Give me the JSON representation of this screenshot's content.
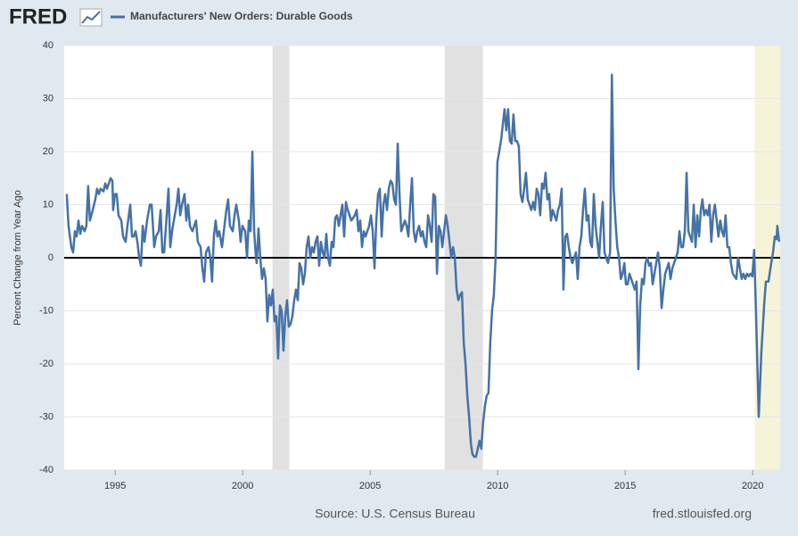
{
  "chart_data": {
    "type": "line",
    "brand": "FRED",
    "y_label": "Percent Change from Year Ago",
    "source": "Source: U.S. Census Bureau",
    "site": "fred.stlouisfed.org",
    "xlim": [
      1993,
      2021.08
    ],
    "xticks": [
      1995,
      2000,
      2005,
      2010,
      2015,
      2020
    ],
    "ylim": [
      -40,
      40
    ],
    "yticks": [
      -40,
      -30,
      -20,
      -10,
      0,
      10,
      20,
      30,
      40
    ],
    "grid": true,
    "zero_line": true,
    "shaded_regions": [
      {
        "x": [
          2001.17,
          2001.83
        ],
        "color": "#e1e1e1"
      },
      {
        "x": [
          2007.92,
          2009.42
        ],
        "color": "#e1e1e1"
      },
      {
        "x": [
          2020.08,
          2021.08
        ],
        "color": "#f6f4d8"
      }
    ],
    "x": [
      1993.1,
      1993.17,
      1993.28,
      1993.35,
      1993.42,
      1993.49,
      1993.56,
      1993.63,
      1993.7,
      1993.8,
      1993.87,
      1993.94,
      1994.01,
      1994.12,
      1994.22,
      1994.29,
      1994.36,
      1994.43,
      1994.54,
      1994.61,
      1994.68,
      1994.75,
      1994.82,
      1994.89,
      1994.92,
      1994.99,
      1995.06,
      1995.13,
      1995.24,
      1995.31,
      1995.41,
      1995.48,
      1995.59,
      1995.66,
      1995.73,
      1995.8,
      1995.87,
      1995.94,
      1996.01,
      1996.08,
      1996.15,
      1996.25,
      1996.36,
      1996.43,
      1996.53,
      1996.6,
      1996.71,
      1996.78,
      1996.85,
      1996.92,
      1997.02,
      1997.09,
      1997.16,
      1997.23,
      1997.3,
      1997.41,
      1997.48,
      1997.55,
      1997.62,
      1997.72,
      1997.79,
      1997.86,
      1997.93,
      1998.03,
      1998.1,
      1998.17,
      1998.24,
      1998.35,
      1998.42,
      1998.49,
      1998.56,
      1998.66,
      1998.73,
      1998.8,
      1998.87,
      1998.94,
      1999.01,
      1999.08,
      1999.19,
      1999.26,
      1999.36,
      1999.43,
      1999.5,
      1999.61,
      1999.68,
      1999.75,
      1999.85,
      1999.92,
      1999.99,
      2000.1,
      2000.17,
      2000.24,
      2000.31,
      2000.38,
      2000.45,
      2000.52,
      2000.55,
      2000.62,
      2000.69,
      2000.76,
      2000.83,
      2000.9,
      2000.97,
      2001.04,
      2001.11,
      2001.18,
      2001.25,
      2001.32,
      2001.39,
      2001.46,
      2001.53,
      2001.6,
      2001.67,
      2001.74,
      2001.81,
      2001.88,
      2001.95,
      2002.02,
      2002.09,
      2002.16,
      2002.23,
      2002.3,
      2002.37,
      2002.44,
      2002.51,
      2002.58,
      2002.65,
      2002.72,
      2002.79,
      2002.86,
      2002.93,
      2003.0,
      2003.07,
      2003.14,
      2003.21,
      2003.28,
      2003.35,
      2003.42,
      2003.49,
      2003.56,
      2003.63,
      2003.7,
      2003.77,
      2003.84,
      2003.91,
      2003.98,
      2004.05,
      2004.12,
      2004.19,
      2004.26,
      2004.33,
      2004.4,
      2004.47,
      2004.54,
      2004.61,
      2004.68,
      2004.75,
      2004.82,
      2004.89,
      2004.96,
      2005.03,
      2005.1,
      2005.17,
      2005.24,
      2005.31,
      2005.38,
      2005.45,
      2005.52,
      2005.59,
      2005.66,
      2005.73,
      2005.8,
      2005.87,
      2005.94,
      2006.01,
      2006.08,
      2006.15,
      2006.22,
      2006.29,
      2006.36,
      2006.43,
      2006.5,
      2006.57,
      2006.64,
      2006.71,
      2006.78,
      2006.85,
      2006.92,
      2006.99,
      2007.06,
      2007.13,
      2007.2,
      2007.27,
      2007.34,
      2007.41,
      2007.48,
      2007.55,
      2007.62,
      2007.69,
      2007.76,
      2007.83,
      2007.9,
      2007.97,
      2008.04,
      2008.11,
      2008.18,
      2008.25,
      2008.32,
      2008.39,
      2008.46,
      2008.53,
      2008.6,
      2008.67,
      2008.74,
      2008.81,
      2008.88,
      2008.95,
      2009.01,
      2009.08,
      2009.15,
      2009.22,
      2009.29,
      2009.36,
      2009.43,
      2009.5,
      2009.57,
      2009.64,
      2009.71,
      2009.78,
      2009.85,
      2009.92,
      2009.99,
      2010.06,
      2010.13,
      2010.2,
      2010.27,
      2010.34,
      2010.41,
      2010.48,
      2010.55,
      2010.62,
      2010.69,
      2010.76,
      2010.83,
      2010.9,
      2010.97,
      2011.04,
      2011.11,
      2011.18,
      2011.25,
      2011.32,
      2011.39,
      2011.46,
      2011.53,
      2011.6,
      2011.67,
      2011.74,
      2011.81,
      2011.88,
      2011.95,
      2012.02,
      2012.09,
      2012.16,
      2012.23,
      2012.3,
      2012.37,
      2012.44,
      2012.51,
      2012.58,
      2012.65,
      2012.72,
      2012.79,
      2012.86,
      2012.93,
      2013.0,
      2013.07,
      2013.14,
      2013.21,
      2013.28,
      2013.35,
      2013.42,
      2013.49,
      2013.56,
      2013.63,
      2013.7,
      2013.77,
      2013.84,
      2013.91,
      2013.98,
      2014.05,
      2014.12,
      2014.19,
      2014.26,
      2014.33,
      2014.41,
      2014.48,
      2014.55,
      2014.62,
      2014.69,
      2014.76,
      2014.83,
      2014.9,
      2014.97,
      2015.03,
      2015.1,
      2015.17,
      2015.24,
      2015.31,
      2015.38,
      2015.45,
      2015.52,
      2015.59,
      2015.66,
      2015.73,
      2015.8,
      2015.87,
      2015.94,
      2016.01,
      2016.08,
      2016.15,
      2016.22,
      2016.29,
      2016.36,
      2016.43,
      2016.5,
      2016.57,
      2016.64,
      2016.71,
      2016.78,
      2016.85,
      2016.92,
      2016.99,
      2017.06,
      2017.13,
      2017.2,
      2017.27,
      2017.34,
      2017.41,
      2017.48,
      2017.55,
      2017.62,
      2017.69,
      2017.76,
      2017.83,
      2017.9,
      2017.97,
      2018.03,
      2018.1,
      2018.17,
      2018.24,
      2018.31,
      2018.38,
      2018.45,
      2018.52,
      2018.59,
      2018.66,
      2018.73,
      2018.8,
      2018.87,
      2018.94,
      2019.01,
      2019.08,
      2019.15,
      2019.22,
      2019.29,
      2019.36,
      2019.43,
      2019.5,
      2019.57,
      2019.64,
      2019.71,
      2019.78,
      2019.85,
      2019.92,
      2019.99,
      2020.06,
      2020.13,
      2020.24,
      2020.34,
      2020.45,
      2020.52,
      2020.62,
      2020.73,
      2020.8,
      2020.87,
      2020.94,
      2020.97,
      2021.04
    ],
    "series": [
      {
        "name": "Manufacturers' New Orders: Durable Goods",
        "color": "#4572a7",
        "values": [
          12,
          6,
          2,
          1,
          5,
          4,
          7,
          4.5,
          6,
          5,
          6,
          13.5,
          7,
          9,
          11,
          13,
          12,
          13,
          12.5,
          14,
          13,
          14,
          15,
          14.5,
          9,
          12,
          12,
          8,
          7,
          4,
          3,
          6,
          10,
          4,
          4,
          5,
          3,
          0,
          -1.5,
          6,
          3,
          7,
          10,
          10,
          2,
          4,
          5,
          9,
          1,
          1,
          8,
          13,
          2,
          5,
          7,
          10,
          13,
          8,
          10,
          12,
          7,
          10,
          6,
          5,
          6,
          7,
          3,
          2,
          -2,
          -4.5,
          1,
          2,
          0,
          -4.5,
          4,
          7,
          4,
          5,
          2,
          5,
          9,
          11,
          6,
          5,
          8,
          10,
          7,
          3,
          6,
          5,
          0,
          7,
          5,
          20,
          5,
          0,
          -1,
          5.5,
          0,
          -4,
          -2,
          -4,
          -12,
          -7,
          -9,
          -6,
          -12,
          -11,
          -19,
          -9,
          -10,
          -17.5,
          -11,
          -8,
          -13,
          -12.5,
          -11,
          -8,
          -6,
          -8,
          -1,
          -2,
          -5,
          -3,
          2,
          4,
          0,
          2,
          1,
          3,
          4,
          -1.5,
          3,
          1,
          0,
          4.5,
          0,
          -1.5,
          3,
          2,
          7.5,
          8,
          6,
          8,
          10,
          4,
          10.5,
          9,
          8,
          7,
          7.5,
          8,
          9,
          5,
          7,
          2,
          5,
          4,
          5,
          6,
          8,
          5,
          -2,
          7,
          12,
          13,
          4,
          10,
          12,
          9,
          13,
          14.5,
          14,
          11,
          10,
          21.5,
          12,
          5,
          6,
          7,
          6,
          4,
          10,
          15,
          5,
          3,
          5,
          6,
          4,
          5,
          3,
          2,
          8,
          6,
          3,
          12,
          11.5,
          -3,
          6,
          5,
          2,
          5,
          8,
          6,
          3,
          0,
          2,
          0,
          -6,
          -8,
          -7,
          -6.5,
          -16,
          -20,
          -26,
          -30,
          -35,
          -37,
          -37.5,
          -37.5,
          -36,
          -34.5,
          -36,
          -31,
          -28,
          -26,
          -25.5,
          -16,
          -10,
          -7,
          0,
          18,
          20,
          22,
          25,
          28,
          24,
          28,
          22,
          21.5,
          27,
          22,
          22,
          21,
          12,
          10.5,
          13,
          16,
          11,
          10,
          9,
          10.5,
          9,
          13,
          12,
          8,
          14,
          13,
          16,
          11,
          12,
          7,
          9,
          8,
          7,
          9,
          10,
          13,
          -6,
          4,
          4.5,
          2,
          0,
          -1,
          0,
          1,
          -4,
          2,
          4,
          9,
          13,
          7,
          8,
          3,
          2,
          12,
          6,
          3,
          0,
          6,
          10.5,
          1,
          0,
          -1,
          1,
          34.5,
          13,
          7,
          2,
          0,
          -4,
          -3,
          -1,
          -5,
          -5,
          -3,
          -4,
          -5,
          -6,
          -4.5,
          -21,
          -9,
          -4,
          -5,
          -1,
          0,
          -1.5,
          -1,
          -5,
          -3,
          -1,
          1,
          -2,
          -9.5,
          -6,
          -3,
          -2,
          -1,
          -4,
          -2,
          -1,
          0,
          1,
          5,
          2,
          2,
          5,
          16,
          5,
          4,
          3,
          10,
          2,
          8,
          4,
          9,
          11,
          8,
          9,
          8,
          10,
          3,
          8,
          10,
          7,
          4,
          7,
          5,
          4,
          8,
          2,
          2,
          -1,
          -3,
          -3.5,
          -4,
          0,
          -2,
          -4,
          -3,
          -4,
          -3,
          -3.5,
          -3,
          -3.5,
          1.5,
          -10,
          -30,
          -18,
          -9,
          -4.5,
          -4.5,
          -1,
          1,
          4,
          3.5,
          6,
          3
        ]
      }
    ]
  }
}
